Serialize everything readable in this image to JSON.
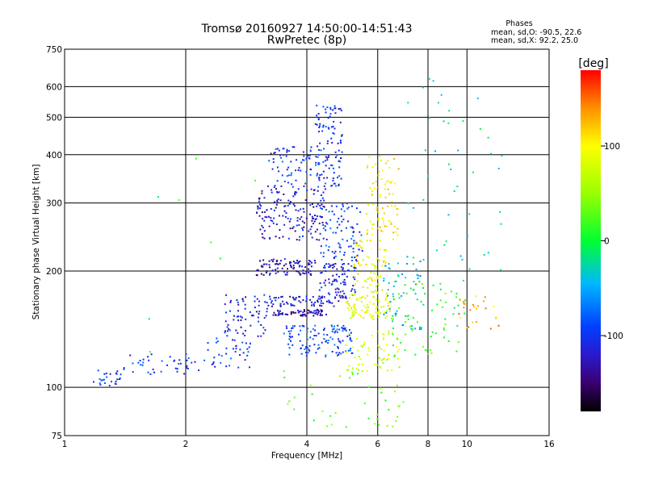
{
  "chart_data": {
    "type": "scatter",
    "title": "Tromsø 20160927 14:50:00-14:51:43",
    "subtitle": "RwPretec (8p)",
    "xlabel": "Frequency [MHz]",
    "ylabel": "Stationary phase Virtual Height [km]",
    "x_scale": "log",
    "y_scale": "log",
    "xlim": [
      1,
      16
    ],
    "ylim": [
      75,
      750
    ],
    "x_ticks": [
      1,
      2,
      4,
      6,
      8,
      10,
      16
    ],
    "x_tick_labels": [
      "1",
      "2",
      "4",
      "6",
      "8",
      "10",
      "16"
    ],
    "y_ticks": [
      75,
      100,
      200,
      300,
      400,
      500,
      600,
      750
    ],
    "y_tick_labels": [
      "75",
      "100",
      "200",
      "300",
      "400",
      "500",
      "600",
      "750"
    ],
    "grid": true,
    "info": {
      "heading": "Phases",
      "line1": "mean, sd,O: -90.5, 22.6",
      "line2": "mean, sd,X:  92.2, 25.0"
    },
    "colorbar": {
      "label": "[deg]",
      "range": [
        -180,
        180
      ],
      "ticks": [
        100,
        0,
        -100
      ],
      "tick_labels": [
        "100",
        "0",
        "-100"
      ],
      "stops": [
        {
          "v": -180,
          "color": "#000000"
        },
        {
          "v": -150,
          "color": "#3a0070"
        },
        {
          "v": -120,
          "color": "#2a1ad0"
        },
        {
          "v": -90,
          "color": "#0040ff"
        },
        {
          "v": -45,
          "color": "#00b8ff"
        },
        {
          "v": 0,
          "color": "#00ff30"
        },
        {
          "v": 50,
          "color": "#9aff00"
        },
        {
          "v": 100,
          "color": "#ffff00"
        },
        {
          "v": 140,
          "color": "#ff9000"
        },
        {
          "v": 180,
          "color": "#ff0000"
        }
      ]
    },
    "clusters": [
      {
        "f": [
          1.18,
          1.38
        ],
        "h": [
          100,
          112
        ],
        "phase": -95,
        "n": 25
      },
      {
        "f": [
          1.4,
          2.2
        ],
        "h": [
          108,
          122
        ],
        "phase": -100,
        "n": 40
      },
      {
        "f": [
          2.2,
          2.9
        ],
        "h": [
          112,
          135
        ],
        "phase": -95,
        "n": 40
      },
      {
        "f": [
          2.5,
          3.2
        ],
        "h": [
          135,
          175
        ],
        "phase": -110,
        "n": 70
      },
      {
        "f": [
          3.0,
          4.2
        ],
        "h": [
          195,
          215
        ],
        "phase": -130,
        "n": 90
      },
      {
        "f": [
          3.0,
          4.5
        ],
        "h": [
          240,
          330
        ],
        "phase": -120,
        "n": 160
      },
      {
        "f": [
          3.2,
          4.3
        ],
        "h": [
          330,
          420
        ],
        "phase": -100,
        "n": 70
      },
      {
        "f": [
          4.2,
          4.9
        ],
        "h": [
          330,
          540
        ],
        "phase": -100,
        "n": 110
      },
      {
        "f": [
          3.3,
          4.5
        ],
        "h": [
          153,
          159
        ],
        "phase": -130,
        "n": 70
      },
      {
        "f": [
          3.2,
          4.8
        ],
        "h": [
          162,
          172
        ],
        "phase": -120,
        "n": 70
      },
      {
        "f": [
          3.5,
          5.2
        ],
        "h": [
          120,
          145
        ],
        "phase": -90,
        "n": 120
      },
      {
        "f": [
          4.3,
          5.3
        ],
        "h": [
          170,
          210
        ],
        "phase": -110,
        "n": 90
      },
      {
        "f": [
          4.3,
          5.5
        ],
        "h": [
          210,
          300
        ],
        "phase": -95,
        "n": 90
      },
      {
        "f": [
          5.0,
          6.5
        ],
        "h": [
          150,
          175
        ],
        "phase": 85,
        "n": 90
      },
      {
        "f": [
          5.2,
          6.3
        ],
        "h": [
          175,
          240
        ],
        "phase": 95,
        "n": 70
      },
      {
        "f": [
          5.6,
          6.8
        ],
        "h": [
          240,
          400
        ],
        "phase": 105,
        "n": 80
      },
      {
        "f": [
          5.0,
          6.8
        ],
        "h": [
          110,
          140
        ],
        "phase": 75,
        "n": 60
      },
      {
        "f": [
          6.2,
          7.8
        ],
        "h": [
          140,
          220
        ],
        "phase": -40,
        "n": 60
      },
      {
        "f": [
          6.5,
          10.0
        ],
        "h": [
          120,
          190
        ],
        "phase": 20,
        "n": 70
      },
      {
        "f": [
          7.0,
          12.5
        ],
        "h": [
          200,
          640
        ],
        "phase": -30,
        "n": 45
      },
      {
        "f": [
          3.5,
          7.0
        ],
        "h": [
          78,
          112
        ],
        "phase": 30,
        "n": 40
      },
      {
        "f": [
          9.5,
          12.0
        ],
        "h": [
          140,
          175
        ],
        "phase": 130,
        "n": 25
      },
      {
        "f": [
          1.6,
          3.0
        ],
        "h": [
          75,
          420
        ],
        "phase": 0,
        "n": 8
      }
    ]
  }
}
